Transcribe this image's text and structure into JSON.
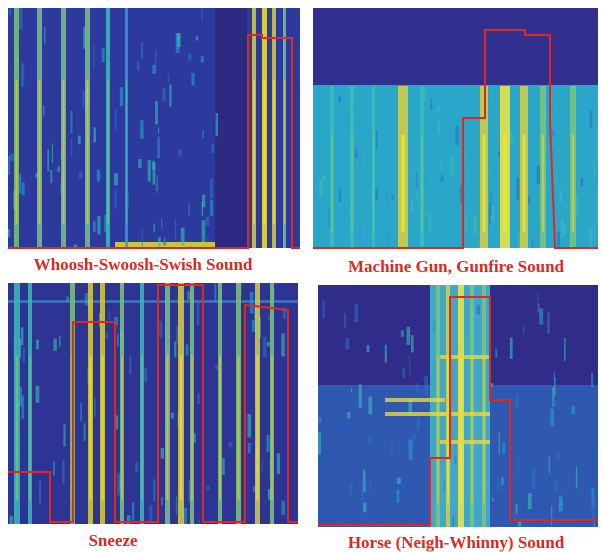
{
  "panels": [
    {
      "caption": "Whoosh-Swoosh-Swish Sound"
    },
    {
      "caption": "Machine Gun,  Gunfire Sound"
    },
    {
      "caption": "Sneeze"
    },
    {
      "caption": "Horse (Neigh-Whinny) Sound"
    }
  ]
}
